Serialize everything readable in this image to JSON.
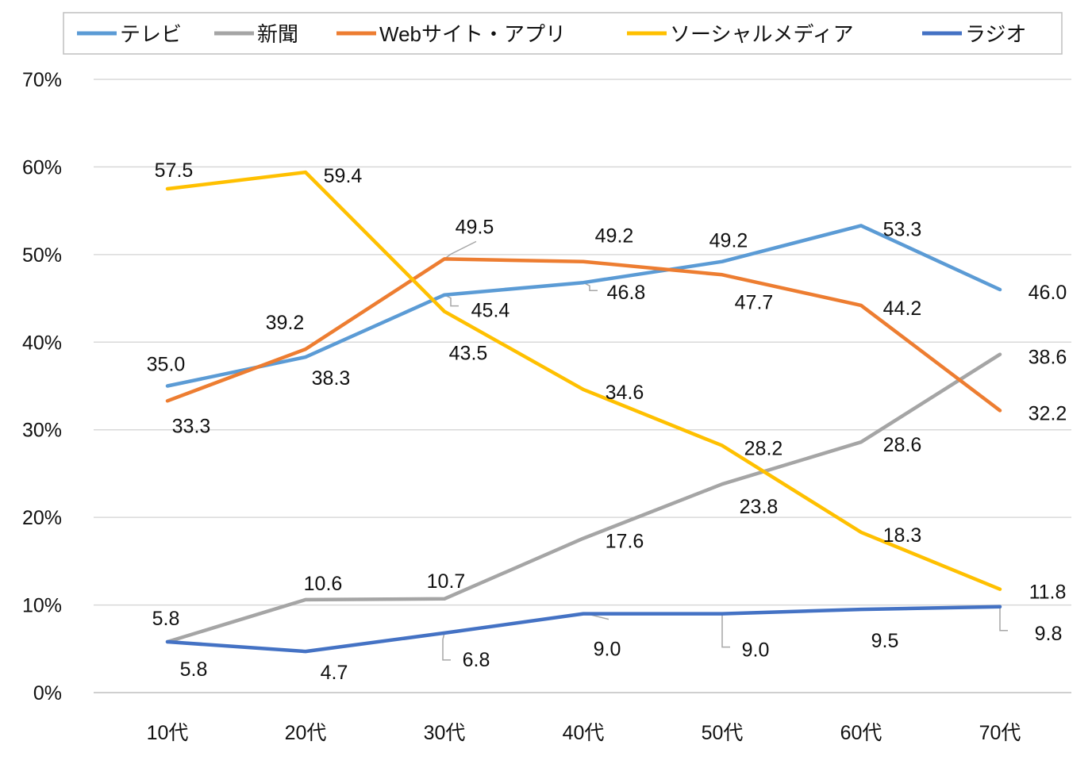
{
  "chart_data": {
    "type": "line",
    "categories": [
      "10代",
      "20代",
      "30代",
      "40代",
      "50代",
      "60代",
      "70代"
    ],
    "y_ticks": [
      "0%",
      "10%",
      "20%",
      "30%",
      "40%",
      "50%",
      "60%",
      "70%"
    ],
    "ylim": [
      0,
      70
    ],
    "grid": true,
    "legend_position": "top",
    "series": [
      {
        "name": "テレビ",
        "color": "#5B9BD5",
        "values": [
          35.0,
          38.3,
          45.4,
          46.8,
          49.2,
          53.3,
          46.0
        ],
        "labels": [
          "35.0",
          "38.3",
          "45.4",
          "46.8",
          "49.2",
          "53.3",
          "46.0"
        ]
      },
      {
        "name": "新聞",
        "color": "#A5A5A5",
        "values": [
          5.8,
          10.6,
          10.7,
          17.6,
          23.8,
          28.6,
          38.6
        ],
        "labels": [
          "5.8",
          "10.6",
          "10.7",
          "17.6",
          "23.8",
          "28.6",
          "38.6"
        ]
      },
      {
        "name": "Webサイト・アプリ",
        "color": "#ED7D31",
        "values": [
          33.3,
          39.2,
          49.5,
          49.2,
          47.7,
          44.2,
          32.2
        ],
        "labels": [
          "33.3",
          "39.2",
          "49.5",
          "49.2",
          "47.7",
          "44.2",
          "32.2"
        ]
      },
      {
        "name": "ソーシャルメディア",
        "color": "#FFC000",
        "values": [
          57.5,
          59.4,
          43.5,
          34.6,
          28.2,
          18.3,
          11.8
        ],
        "labels": [
          "57.5",
          "59.4",
          "43.5",
          "34.6",
          "28.2",
          "18.3",
          "11.8"
        ]
      },
      {
        "name": "ラジオ",
        "color": "#4472C4",
        "values": [
          5.8,
          4.7,
          6.8,
          9.0,
          9.0,
          9.5,
          9.8
        ],
        "labels": [
          "5.8",
          "4.7",
          "6.8",
          "9.0",
          "9.0",
          "9.5",
          "9.8"
        ]
      }
    ]
  }
}
